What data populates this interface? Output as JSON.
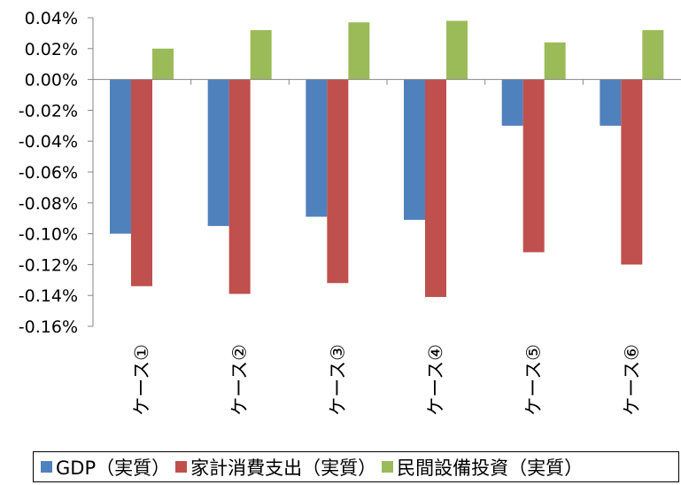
{
  "chart_data": {
    "type": "bar",
    "title": "",
    "xlabel": "",
    "ylabel": "",
    "categories": [
      "ケース①",
      "ケース②",
      "ケース③",
      "ケース④",
      "ケース⑤",
      "ケース⑥"
    ],
    "series": [
      {
        "name": "GDP（実質）",
        "color": "#4f81bd",
        "values": [
          -0.1,
          -0.095,
          -0.089,
          -0.091,
          -0.03,
          -0.03
        ]
      },
      {
        "name": "家計消費支出（実質）",
        "color": "#c0504d",
        "values": [
          -0.134,
          -0.139,
          -0.132,
          -0.141,
          -0.112,
          -0.12
        ]
      },
      {
        "name": "民間設備投資（実質）",
        "color": "#9bbb59",
        "values": [
          0.02,
          0.032,
          0.037,
          0.038,
          0.024,
          0.032
        ]
      }
    ],
    "ylim": [
      -0.16,
      0.04
    ],
    "yticks": [
      0.04,
      0.02,
      0.0,
      -0.02,
      -0.04,
      -0.06,
      -0.08,
      -0.1,
      -0.12,
      -0.14,
      -0.16
    ],
    "ytick_labels": [
      "0.04%",
      "0.02%",
      "0.00%",
      "-0.02%",
      "-0.04%",
      "-0.06%",
      "-0.08%",
      "-0.10%",
      "-0.12%",
      "-0.14%",
      "-0.16%"
    ],
    "y_unit": "%",
    "gridlines": false,
    "legend_position": "bottom"
  }
}
